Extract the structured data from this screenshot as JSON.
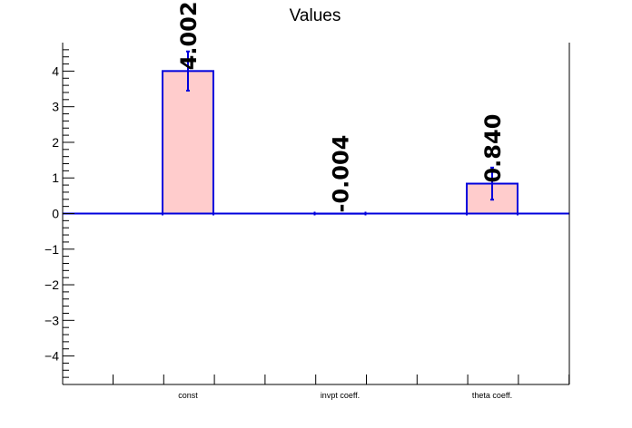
{
  "chart_data": {
    "type": "bar",
    "title": "Values",
    "xlabel": "",
    "ylabel": "",
    "categories": [
      "const",
      "invpt coeff.",
      "theta coeff."
    ],
    "values": [
      4.002,
      -0.004,
      0.84
    ],
    "value_labels": [
      "4.002",
      "-0.004",
      "0.840"
    ],
    "errors": [
      0.55,
      0.0,
      0.45
    ],
    "ylim": [
      -4.8,
      4.8
    ],
    "yticks": [
      -4,
      -3,
      -2,
      -1,
      0,
      1,
      2,
      3,
      4
    ],
    "ytick_labels": [
      "−4",
      "−3",
      "−2",
      "−1",
      "0",
      "1",
      "2",
      "3",
      "4"
    ],
    "grid": false,
    "legend": "none",
    "colors": {
      "bar_fill": "#ffcccc",
      "bar_edge": "#0000dd",
      "error_bar": "#0000dd",
      "axis": "#000000",
      "zero_line": "#0000dd"
    }
  }
}
